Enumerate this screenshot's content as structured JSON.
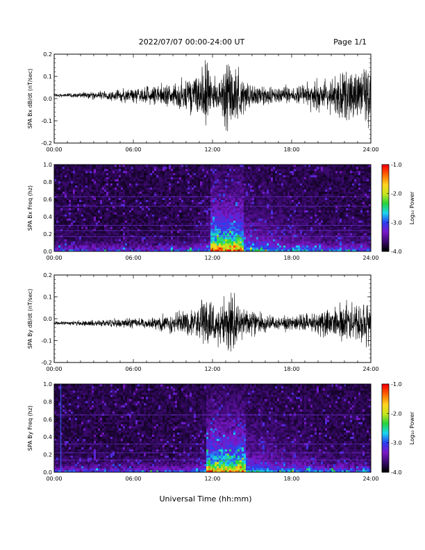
{
  "header": {
    "date_range": "2022/07/07  00:00-24:00 UT",
    "page": "Page 1/1"
  },
  "footer": {
    "xlabel": "Universal Time (hh:mm)"
  },
  "colors": {
    "background": "#ffffff",
    "waveform": "#000000",
    "colorbar_stops": [
      "#000000",
      "#3a0a6e",
      "#7a18c8",
      "#2a3ef0",
      "#19d7f0",
      "#26d23c",
      "#c8e61e",
      "#ffd21e",
      "#ff6a00",
      "#ff0000"
    ]
  },
  "chart_data": [
    {
      "type": "line",
      "ylabel": "SPA Bx dB/dt (nT/sec)",
      "xlabel": "",
      "x_ticks": [
        "00:00",
        "06:00",
        "12:00",
        "18:00",
        "24:00"
      ],
      "xlim": [
        0,
        24
      ],
      "ylim": [
        -0.2,
        0.2
      ],
      "y_ticks": [
        "-0.2",
        "-0.1",
        "0.0",
        "0.1",
        "0.2"
      ],
      "y_tick_values": [
        -0.2,
        -0.1,
        0.0,
        0.1,
        0.2
      ],
      "series": [
        {
          "x_hours": [
            0,
            1,
            2,
            3,
            4,
            5,
            6,
            7,
            8,
            9,
            10,
            10.5,
            11,
            11.5,
            12,
            12.5,
            13,
            13.5,
            14,
            14.5,
            15,
            16,
            17,
            18,
            19,
            20,
            21,
            22,
            23,
            24
          ],
          "amplitude": [
            0.012,
            0.012,
            0.018,
            0.025,
            0.03,
            0.04,
            0.05,
            0.06,
            0.07,
            0.09,
            0.11,
            0.13,
            0.18,
            0.22,
            0.14,
            0.1,
            0.2,
            0.22,
            0.18,
            0.12,
            0.09,
            0.07,
            0.06,
            0.06,
            0.07,
            0.1,
            0.13,
            0.16,
            0.18,
            0.2
          ],
          "offset": 0.015
        }
      ]
    },
    {
      "type": "heatmap",
      "ylabel": "SPA Bx Freq (hz)",
      "x_ticks": [
        "00:00",
        "06:00",
        "12:00",
        "18:00",
        "24:00"
      ],
      "xlim": [
        0,
        24
      ],
      "ylim": [
        0.0,
        1.0
      ],
      "y_ticks": [
        "0.0",
        "0.2",
        "0.4",
        "0.6",
        "0.8",
        "1.0"
      ],
      "y_tick_values": [
        0.0,
        0.2,
        0.4,
        0.6,
        0.8,
        1.0
      ],
      "colorbar": {
        "label": "Log₁₀ Power",
        "range": [
          -4.0,
          -1.0
        ],
        "ticks": [
          "-1.0",
          "-2.0",
          "-3.0",
          "-4.0"
        ],
        "tick_values": [
          -1.0,
          -2.0,
          -3.0,
          -4.0
        ]
      },
      "horizontal_lines_hz": [
        0.63,
        0.52,
        0.3,
        0.24,
        0.17
      ],
      "activity_window_hours": [
        11.8,
        14.4
      ],
      "peak_log_power": -1.5,
      "background_log_power": -3.9
    },
    {
      "type": "line",
      "ylabel": "SPA By dB/dt (nT/sec)",
      "xlabel": "",
      "x_ticks": [
        "00:00",
        "06:00",
        "12:00",
        "18:00",
        "24:00"
      ],
      "xlim": [
        0,
        24
      ],
      "ylim": [
        -0.2,
        0.2
      ],
      "y_ticks": [
        "-0.2",
        "-0.1",
        "0.0",
        "0.1",
        "0.2"
      ],
      "y_tick_values": [
        -0.2,
        -0.1,
        0.0,
        0.1,
        0.2
      ],
      "series": [
        {
          "x_hours": [
            0,
            1,
            2,
            3,
            4,
            5,
            6,
            7,
            8,
            9,
            10,
            10.5,
            11,
            11.5,
            12,
            12.5,
            13,
            13.5,
            14,
            14.5,
            15,
            16,
            17,
            18,
            19,
            20,
            21,
            22,
            23,
            24
          ],
          "amplitude": [
            0.01,
            0.012,
            0.018,
            0.02,
            0.025,
            0.03,
            0.035,
            0.04,
            0.05,
            0.06,
            0.08,
            0.1,
            0.14,
            0.2,
            0.16,
            0.14,
            0.2,
            0.2,
            0.16,
            0.1,
            0.08,
            0.06,
            0.05,
            0.05,
            0.06,
            0.08,
            0.1,
            0.13,
            0.15,
            0.16
          ],
          "offset": -0.02
        }
      ]
    },
    {
      "type": "heatmap",
      "ylabel": "SPA By Freq (hz)",
      "x_ticks": [
        "00:00",
        "06:00",
        "12:00",
        "18:00",
        "24:00"
      ],
      "xlim": [
        0,
        24
      ],
      "ylim": [
        0.0,
        1.0
      ],
      "y_ticks": [
        "0.0",
        "0.2",
        "0.4",
        "0.6",
        "0.8",
        "1.0"
      ],
      "y_tick_values": [
        0.0,
        0.2,
        0.4,
        0.6,
        0.8,
        1.0
      ],
      "colorbar": {
        "label": "Log₁₀ Power",
        "range": [
          -4.0,
          -1.0
        ],
        "ticks": [
          "-1.0",
          "-2.0",
          "-3.0",
          "-4.0"
        ],
        "tick_values": [
          -1.0,
          -2.0,
          -3.0,
          -4.0
        ]
      },
      "horizontal_lines_hz": [
        0.65,
        0.32,
        0.22,
        0.14
      ],
      "vertical_line_hours": [
        0.5
      ],
      "activity_window_hours": [
        11.5,
        14.6
      ],
      "peak_log_power": -1.8,
      "background_log_power": -3.9
    }
  ]
}
